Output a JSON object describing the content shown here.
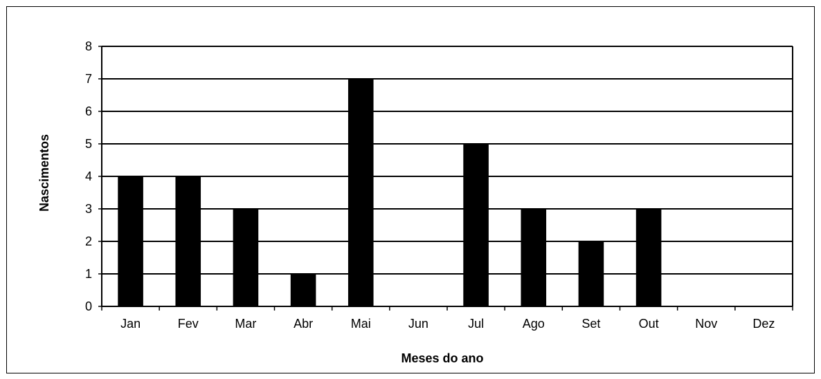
{
  "chart_data": {
    "type": "bar",
    "title": "",
    "xlabel": "Meses do ano",
    "ylabel": "Nascimentos",
    "categories": [
      "Jan",
      "Fev",
      "Mar",
      "Abr",
      "Mai",
      "Jun",
      "Jul",
      "Ago",
      "Set",
      "Out",
      "Nov",
      "Dez"
    ],
    "values": [
      4,
      4,
      3,
      1,
      7,
      0,
      5,
      3,
      2,
      3,
      0,
      0
    ],
    "ylim": [
      0,
      8
    ],
    "yticks": [
      0,
      1,
      2,
      3,
      4,
      5,
      6,
      7,
      8
    ],
    "grid": true,
    "legend": "none",
    "colors": {
      "bar": "#000000",
      "grid": "#000000",
      "axis": "#000000",
      "background": "#ffffff"
    }
  }
}
